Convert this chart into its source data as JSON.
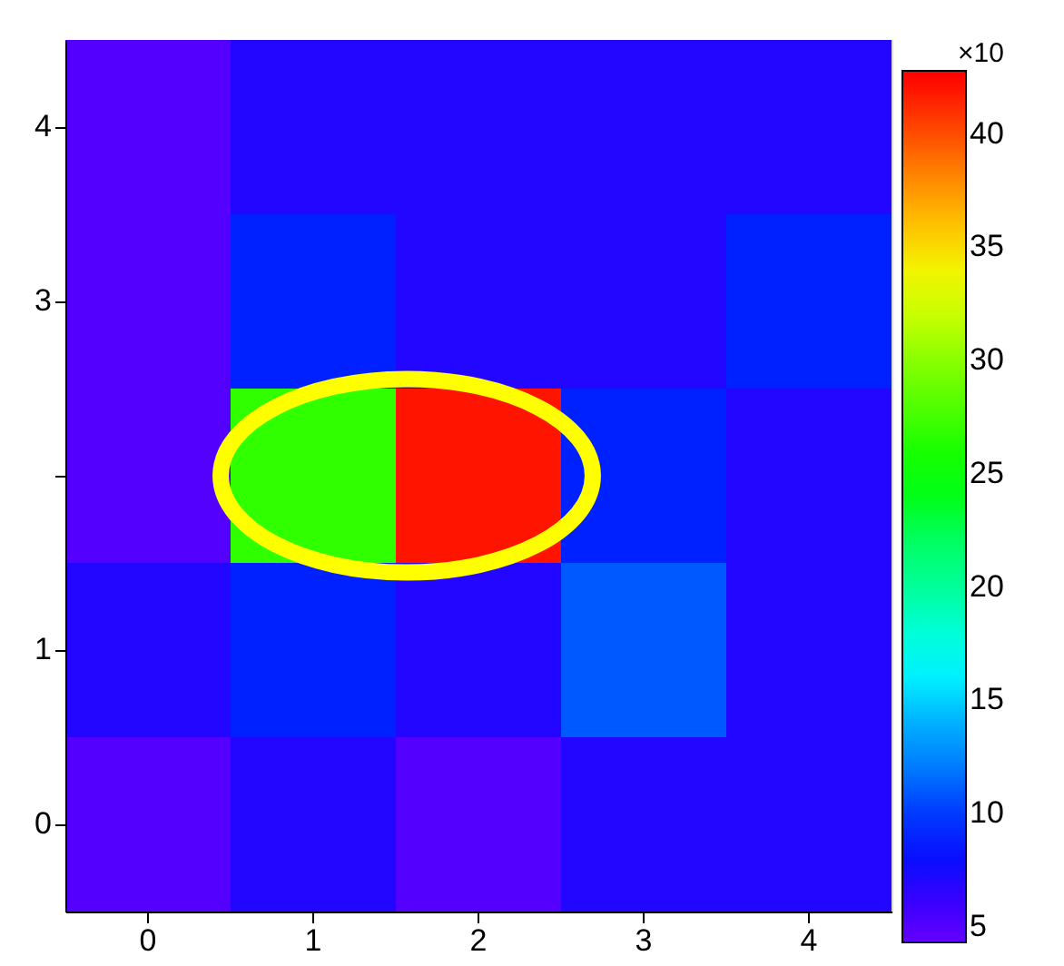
{
  "chart_data": {
    "type": "heatmap",
    "categories": [
      "0",
      "1",
      "2",
      "3",
      "4"
    ],
    "y_categories": [
      "4",
      "3",
      null,
      "1",
      "0"
    ],
    "cells": [
      [
        5,
        7,
        7,
        7,
        7
      ],
      [
        5,
        9,
        7,
        7,
        9
      ],
      [
        5,
        27,
        42,
        9,
        7
      ],
      [
        7,
        9,
        7,
        11,
        7
      ],
      [
        5,
        7,
        5,
        7,
        7
      ]
    ],
    "clim": [
      4.3,
      42.8
    ],
    "cticks": [
      5,
      10,
      15,
      20,
      25,
      30,
      35,
      40
    ],
    "clabel": "×10"
  }
}
